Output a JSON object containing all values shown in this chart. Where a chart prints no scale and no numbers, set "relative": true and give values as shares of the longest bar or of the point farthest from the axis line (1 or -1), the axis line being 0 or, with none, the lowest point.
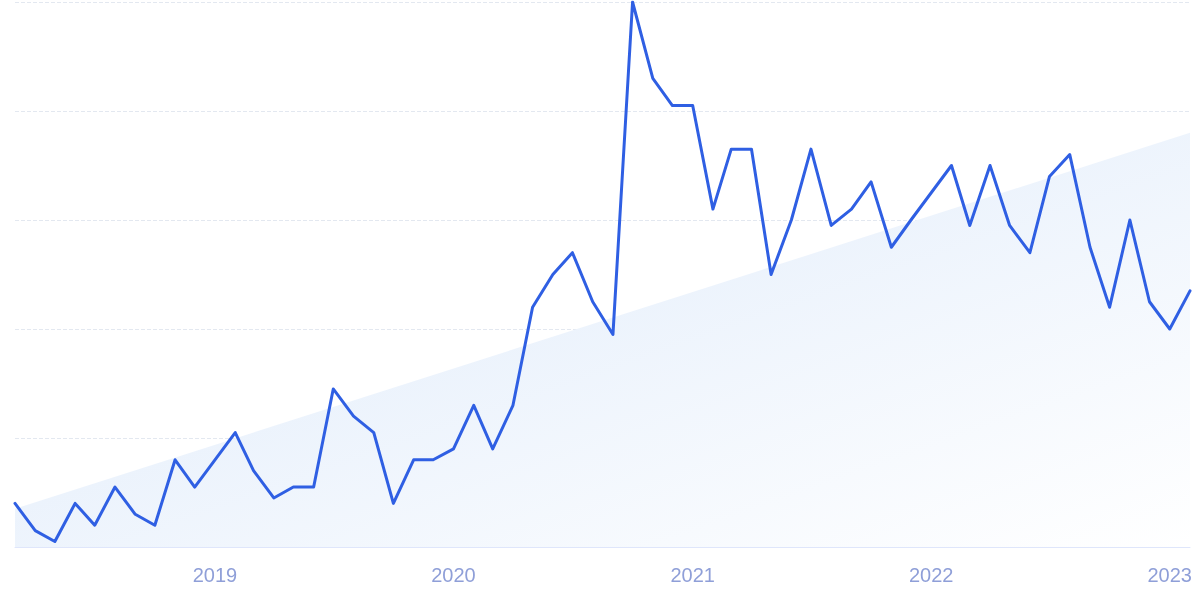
{
  "chart_data": {
    "type": "line",
    "relative": true,
    "grid": "y",
    "marker": "none",
    "line_style": "solid",
    "x": [
      "2018-03",
      "2018-04",
      "2018-05",
      "2018-06",
      "2018-07",
      "2018-08",
      "2018-09",
      "2018-10",
      "2018-11",
      "2018-12",
      "2019-01",
      "2019-02",
      "2019-03",
      "2019-04",
      "2019-05",
      "2019-06",
      "2019-07",
      "2019-08",
      "2019-09",
      "2019-10",
      "2019-11",
      "2019-12",
      "2020-01",
      "2020-02",
      "2020-03",
      "2020-04",
      "2020-05",
      "2020-06",
      "2020-07",
      "2020-08",
      "2020-09",
      "2020-10",
      "2020-11",
      "2020-12",
      "2021-01",
      "2021-02",
      "2021-03",
      "2021-04",
      "2021-05",
      "2021-06",
      "2021-07",
      "2021-08",
      "2021-09",
      "2021-10",
      "2021-11",
      "2021-12",
      "2022-01",
      "2022-02",
      "2022-03",
      "2022-04",
      "2022-05",
      "2022-06",
      "2022-07",
      "2022-08",
      "2022-09",
      "2022-10",
      "2022-11",
      "2022-12",
      "2023-01",
      "2023-02"
    ],
    "xlim": [
      "2018-03",
      "2023-02"
    ],
    "xticks": [
      "2019",
      "2020",
      "2021",
      "2022",
      "2023"
    ],
    "series": [
      {
        "type": "area",
        "color": "#dce9fa",
        "x": [
          "2018-03",
          "2023-02"
        ],
        "values": [
          0.07,
          0.76
        ]
      },
      {
        "color": "#2f5fe3",
        "values": [
          0.08,
          0.03,
          0.01,
          0.08,
          0.04,
          0.11,
          0.06,
          0.04,
          0.16,
          0.11,
          0.16,
          0.21,
          0.14,
          0.09,
          0.11,
          0.11,
          0.29,
          0.24,
          0.21,
          0.08,
          0.16,
          0.16,
          0.18,
          0.26,
          0.18,
          0.26,
          0.44,
          0.5,
          0.54,
          0.45,
          0.39,
          1,
          0.86,
          0.81,
          0.81,
          0.62,
          0.73,
          0.73,
          0.5,
          0.6,
          0.73,
          0.59,
          0.62,
          0.67,
          0.55,
          0.6,
          0.65,
          0.7,
          0.59,
          0.7,
          0.59,
          0.54,
          0.68,
          0.72,
          0.55,
          0.44,
          0.6,
          0.45,
          0.4,
          0.47
        ]
      }
    ]
  }
}
